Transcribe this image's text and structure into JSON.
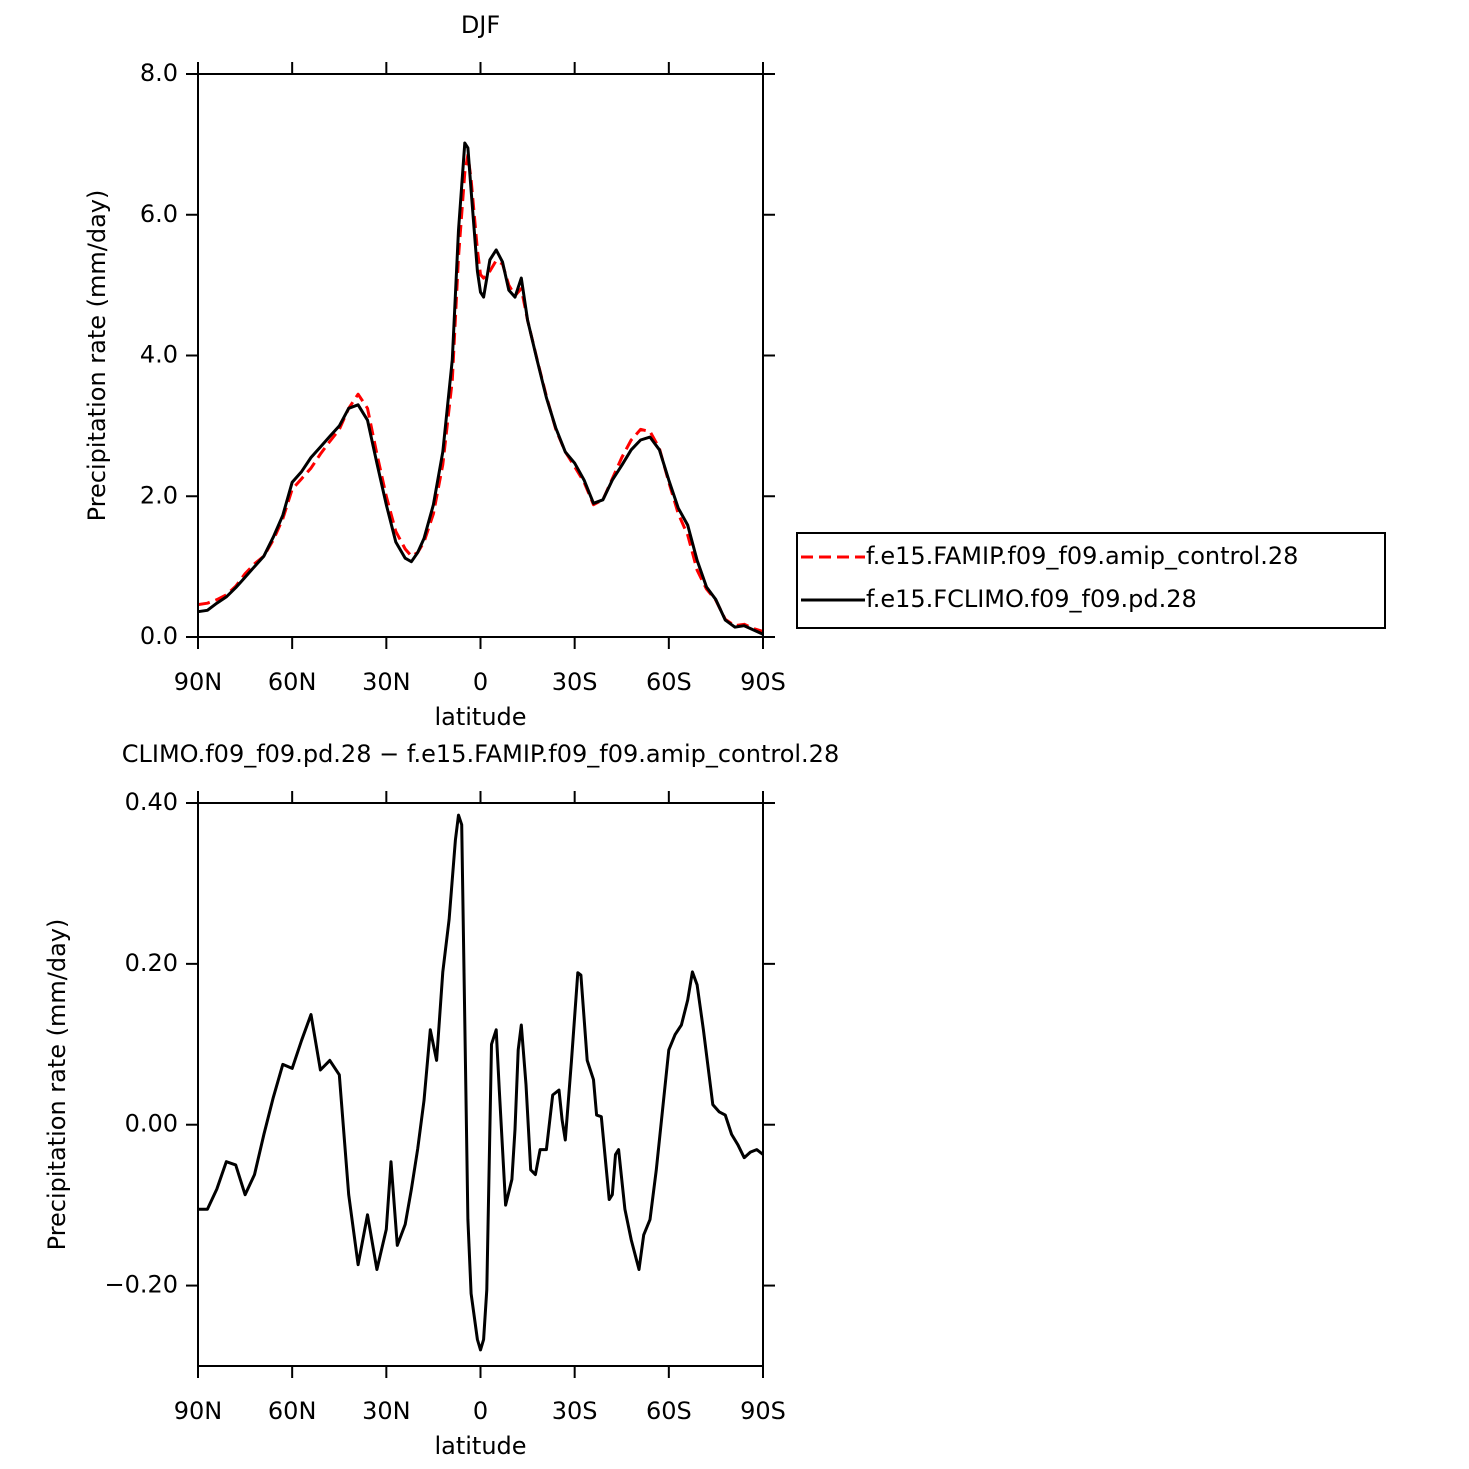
{
  "chart_data": [
    {
      "type": "line",
      "title": "DJF",
      "xlabel": "latitude",
      "ylabel": "Precipitation rate (mm/day)",
      "x": [
        90,
        87,
        84,
        81,
        78,
        75,
        72,
        69,
        66,
        63,
        60,
        57,
        54,
        51,
        48,
        45,
        42,
        39,
        36,
        33,
        30,
        27,
        24,
        22,
        20,
        18,
        15,
        12,
        9,
        7,
        5,
        4,
        3,
        1,
        0,
        -1,
        -3,
        -5,
        -7,
        -9,
        -11,
        -13,
        -15,
        -18,
        -21,
        -24,
        -27,
        -30,
        -33,
        -36,
        -39,
        -42,
        -45,
        -48,
        -51,
        -54,
        -57,
        -60,
        -63,
        -66,
        -69,
        -72,
        -75,
        -78,
        -81,
        -84,
        -87,
        -90
      ],
      "series": [
        {
          "name": "f.e15.FAMIP.f09_f09.amip_control.28",
          "color": "#ff0000",
          "dashed": true,
          "values": [
            0.46,
            0.48,
            0.53,
            0.6,
            0.72,
            0.9,
            1.04,
            1.15,
            1.38,
            1.68,
            2.1,
            2.25,
            2.4,
            2.6,
            2.78,
            2.95,
            3.25,
            3.45,
            3.25,
            2.6,
            2.0,
            1.5,
            1.25,
            1.15,
            1.2,
            1.35,
            1.75,
            2.45,
            3.65,
            5.4,
            6.6,
            6.85,
            6.5,
            5.5,
            5.15,
            5.1,
            5.2,
            5.35,
            5.3,
            5.0,
            4.85,
            4.95,
            4.5,
            3.95,
            3.42,
            2.95,
            2.63,
            2.42,
            2.2,
            1.88,
            1.95,
            2.25,
            2.55,
            2.8,
            2.95,
            2.92,
            2.68,
            2.2,
            1.75,
            1.45,
            0.95,
            0.68,
            0.52,
            0.25,
            0.16,
            0.18,
            0.12,
            0.08
          ]
        },
        {
          "name": "f.e15.FCLIMO.f09_f09.pd.28",
          "color": "#000000",
          "dashed": false,
          "values": [
            0.36,
            0.38,
            0.48,
            0.57,
            0.7,
            0.85,
            1.0,
            1.15,
            1.42,
            1.73,
            2.2,
            2.35,
            2.55,
            2.7,
            2.85,
            3.0,
            3.25,
            3.3,
            3.08,
            2.47,
            1.88,
            1.35,
            1.12,
            1.07,
            1.2,
            1.4,
            1.88,
            2.63,
            3.94,
            5.78,
            7.02,
            6.95,
            6.35,
            5.2,
            4.9,
            4.83,
            5.36,
            5.5,
            5.33,
            4.93,
            4.83,
            5.1,
            4.5,
            3.94,
            3.4,
            2.97,
            2.63,
            2.47,
            2.23,
            1.9,
            1.95,
            2.23,
            2.44,
            2.66,
            2.8,
            2.84,
            2.66,
            2.23,
            1.83,
            1.59,
            1.09,
            0.71,
            0.53,
            0.24,
            0.14,
            0.16,
            0.1,
            0.04
          ]
        }
      ],
      "xlim": [
        90,
        -90
      ],
      "xticks": [
        {
          "value": 90,
          "label": "90N"
        },
        {
          "value": 60,
          "label": "60N"
        },
        {
          "value": 30,
          "label": "30N"
        },
        0,
        {
          "value": -30,
          "label": "30S"
        },
        {
          "value": -60,
          "label": "60S"
        },
        {
          "value": -90,
          "label": "90S"
        }
      ],
      "ylim": [
        0,
        8
      ],
      "yticks": [
        {
          "value": 0,
          "label": "0.0"
        },
        {
          "value": 2,
          "label": "2.0"
        },
        {
          "value": 4,
          "label": "4.0"
        },
        {
          "value": 6,
          "label": "6.0"
        },
        {
          "value": 8,
          "label": "8.0"
        }
      ],
      "legend": "outside-right"
    },
    {
      "type": "line",
      "title": "CLIMO.f09_f09.pd.28 − f.e15.FAMIP.f09_f09.amip_control.28",
      "xlabel": "latitude",
      "ylabel": "Precipitation rate (mm/day)",
      "x": [
        90,
        87,
        84,
        81,
        78,
        75,
        72,
        69,
        66,
        63,
        60,
        57,
        54,
        51,
        48,
        45,
        42,
        39,
        36,
        33,
        30,
        28.5,
        26.5,
        24,
        22,
        20,
        18,
        16,
        14,
        12,
        10,
        8,
        7,
        6,
        4,
        3,
        1,
        0,
        -1,
        -2,
        -3.5,
        -5,
        -6,
        -8,
        -10,
        -11,
        -12,
        -13,
        -14.5,
        -16,
        -17.5,
        -19,
        -21,
        -23,
        -25,
        -26,
        -27,
        -29,
        -31,
        -32,
        -34,
        -36,
        -37,
        -38.5,
        -41,
        -42,
        -43,
        -44,
        -46,
        -48,
        -50.5,
        -52,
        -54,
        -56,
        -58,
        -60,
        -62,
        -64,
        -66,
        -67.5,
        -69,
        -71,
        -74,
        -76,
        -78,
        -80,
        -82,
        -84,
        -86,
        -88,
        -90
      ],
      "color": "#000000",
      "values": [
        -0.105,
        -0.105,
        -0.08,
        -0.046,
        -0.05,
        -0.087,
        -0.062,
        -0.012,
        0.034,
        0.075,
        0.07,
        0.105,
        0.137,
        0.068,
        0.08,
        0.062,
        -0.087,
        -0.174,
        -0.112,
        -0.18,
        -0.13,
        -0.046,
        -0.15,
        -0.124,
        -0.08,
        -0.03,
        0.03,
        0.118,
        0.08,
        0.19,
        0.255,
        0.354,
        0.385,
        0.373,
        -0.118,
        -0.21,
        -0.267,
        -0.28,
        -0.267,
        -0.205,
        0.1,
        0.118,
        0.043,
        -0.1,
        -0.068,
        -0.006,
        0.093,
        0.124,
        0.05,
        -0.056,
        -0.062,
        -0.031,
        -0.031,
        0.037,
        0.043,
        0.006,
        -0.019,
        0.08,
        0.189,
        0.186,
        0.08,
        0.056,
        0.012,
        0.01,
        -0.093,
        -0.087,
        -0.037,
        -0.031,
        -0.105,
        -0.143,
        -0.18,
        -0.137,
        -0.118,
        -0.056,
        0.019,
        0.093,
        0.112,
        0.124,
        0.155,
        0.19,
        0.174,
        0.118,
        0.025,
        0.016,
        0.012,
        -0.012,
        -0.025,
        -0.041,
        -0.034,
        -0.031,
        -0.037
      ],
      "xlim": [
        90,
        -90
      ],
      "xticks": [
        {
          "value": 90,
          "label": "90N"
        },
        {
          "value": 60,
          "label": "60N"
        },
        {
          "value": 30,
          "label": "30N"
        },
        0,
        {
          "value": -30,
          "label": "30S"
        },
        {
          "value": -60,
          "label": "60S"
        },
        {
          "value": -90,
          "label": "90S"
        }
      ],
      "ylim": [
        -0.3,
        0.4
      ],
      "yticks": [
        {
          "value": -0.2,
          "label": "−0.20"
        },
        {
          "value": 0,
          "label": "0.00"
        },
        {
          "value": 0.2,
          "label": "0.20"
        },
        {
          "value": 0.4,
          "label": "0.40"
        }
      ]
    }
  ]
}
